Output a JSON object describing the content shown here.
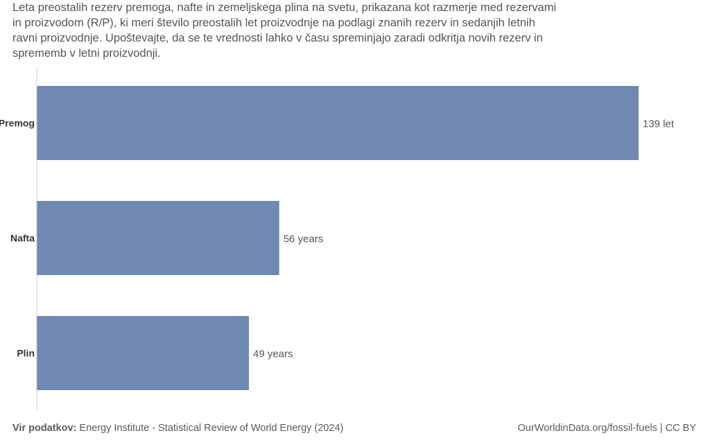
{
  "subtitle_lines": [
    "Leta preostalih rezerv premoga, nafte in zemeljskega plina na svetu, prikazana kot razmerje med rezervami",
    "in proizvodom (R/P), ki meri število preostalih let proizvodnje na podlagi znanih rezerv in sedanjih letnih",
    "ravni proizvodnje. Upoštevajte, da se te vrednosti lahko v času spreminjajo zaradi odkritja novih rezerv in",
    "sprememb v letni proizvodnji."
  ],
  "chart_data": {
    "type": "bar",
    "orientation": "horizontal",
    "categories": [
      "Premog",
      "Nafta",
      "Plin"
    ],
    "values": [
      139,
      56,
      49
    ],
    "value_labels": [
      "139 let",
      "56 years",
      "49 years"
    ],
    "xlim": [
      0,
      139
    ],
    "grid": false,
    "bar_color": "#6f89b3"
  },
  "footer": {
    "source_label": "Vir podatkov:",
    "source_text": "Energy Institute - Statistical Review of World Energy (2024)",
    "credit": "OurWorldinData.org/fossil-fuels | CC BY"
  }
}
